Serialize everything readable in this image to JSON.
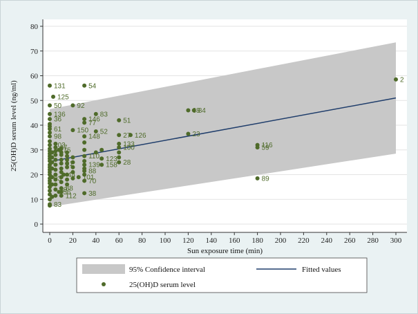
{
  "chart_data": {
    "type": "scatter",
    "xlabel": "Sun exposure time (min)",
    "ylabel": "25(OH)D serum level  (ng/ml)",
    "xlim": [
      0,
      300
    ],
    "ylim": [
      0,
      80
    ],
    "xticks": [
      0,
      20,
      40,
      60,
      80,
      100,
      120,
      140,
      160,
      180,
      200,
      220,
      240,
      260,
      280,
      300
    ],
    "yticks": [
      0,
      10,
      20,
      30,
      40,
      50,
      60,
      70,
      80
    ],
    "grid": "horizontal",
    "legend_placement": "bottom",
    "legend": {
      "ci": "95% Confidence  interval",
      "fit": "Fitted values",
      "points": "25(OH)D serum level"
    },
    "colors": {
      "ci": "#c8c8c8",
      "fit": "#1f3d6b",
      "points": "#4f6b2a",
      "plot_bg": "#ffffff",
      "outer_bg": "#eaf2f3"
    },
    "fitted_line": {
      "x": [
        0,
        300
      ],
      "y": [
        25.3,
        51.0
      ]
    },
    "confidence_band": {
      "x": [
        0,
        300
      ],
      "lower": [
        7.0,
        28.5
      ],
      "upper": [
        46.5,
        73.5
      ]
    },
    "labeled_points": [
      {
        "x": 0,
        "y": 56,
        "label": "131"
      },
      {
        "x": 3,
        "y": 51.5,
        "label": "125"
      },
      {
        "x": 0,
        "y": 48,
        "label": "50"
      },
      {
        "x": 20,
        "y": 48,
        "label": "92"
      },
      {
        "x": 30,
        "y": 56,
        "label": "54"
      },
      {
        "x": 0,
        "y": 44.5,
        "label": "136"
      },
      {
        "x": 0,
        "y": 42.5,
        "label": "36"
      },
      {
        "x": 40,
        "y": 44.5,
        "label": "83"
      },
      {
        "x": 30,
        "y": 42.5,
        "label": "146"
      },
      {
        "x": 30,
        "y": 41,
        "label": "77"
      },
      {
        "x": 60,
        "y": 42,
        "label": "51"
      },
      {
        "x": 120,
        "y": 46,
        "label": "68"
      },
      {
        "x": 125,
        "y": 46,
        "label": "84"
      },
      {
        "x": 0,
        "y": 38.5,
        "label": "61"
      },
      {
        "x": 20,
        "y": 38,
        "label": "150"
      },
      {
        "x": 40,
        "y": 37.5,
        "label": "52"
      },
      {
        "x": 0,
        "y": 35.5,
        "label": "98"
      },
      {
        "x": 30,
        "y": 35.5,
        "label": "148"
      },
      {
        "x": 60,
        "y": 36,
        "label": "27"
      },
      {
        "x": 70,
        "y": 36,
        "label": "126"
      },
      {
        "x": 120,
        "y": 36.5,
        "label": "23"
      },
      {
        "x": 300,
        "y": 58.5,
        "label": "2"
      },
      {
        "x": 0,
        "y": 32,
        "label": "103"
      },
      {
        "x": 5,
        "y": 31,
        "label": "47"
      },
      {
        "x": 8,
        "y": 30,
        "label": "75"
      },
      {
        "x": 60,
        "y": 32.5,
        "label": "133"
      },
      {
        "x": 60,
        "y": 31,
        "label": "100"
      },
      {
        "x": 180,
        "y": 32,
        "label": "116"
      },
      {
        "x": 180,
        "y": 31,
        "label": "59"
      },
      {
        "x": 30,
        "y": 27.5,
        "label": "110"
      },
      {
        "x": 45,
        "y": 26.5,
        "label": "123"
      },
      {
        "x": 60,
        "y": 25,
        "label": "28"
      },
      {
        "x": 10,
        "y": 24.5,
        "label": "91"
      },
      {
        "x": 30,
        "y": 24,
        "label": "139"
      },
      {
        "x": 45,
        "y": 24,
        "label": "158"
      },
      {
        "x": 30,
        "y": 21.5,
        "label": "88"
      },
      {
        "x": 12,
        "y": 20,
        "label": "44"
      },
      {
        "x": 25,
        "y": 19,
        "label": "101"
      },
      {
        "x": 30,
        "y": 17.5,
        "label": "70"
      },
      {
        "x": 0,
        "y": 18.5,
        "label": "93"
      },
      {
        "x": 180,
        "y": 18.5,
        "label": "89"
      },
      {
        "x": 10,
        "y": 14.5,
        "label": "88"
      },
      {
        "x": 5,
        "y": 14,
        "label": "39"
      },
      {
        "x": 8,
        "y": 13,
        "label": "56"
      },
      {
        "x": 10,
        "y": 11.5,
        "label": "112"
      },
      {
        "x": 30,
        "y": 12.5,
        "label": "38"
      },
      {
        "x": 0,
        "y": 8,
        "label": "83"
      }
    ],
    "unlabeled_points": [
      {
        "x": 0,
        "y": 10
      },
      {
        "x": 0,
        "y": 12
      },
      {
        "x": 0,
        "y": 13.5
      },
      {
        "x": 0,
        "y": 15
      },
      {
        "x": 0,
        "y": 16.5
      },
      {
        "x": 0,
        "y": 17.5
      },
      {
        "x": 0,
        "y": 20
      },
      {
        "x": 0,
        "y": 21
      },
      {
        "x": 0,
        "y": 22
      },
      {
        "x": 0,
        "y": 23
      },
      {
        "x": 0,
        "y": 24
      },
      {
        "x": 0,
        "y": 25.5
      },
      {
        "x": 0,
        "y": 26.5
      },
      {
        "x": 0,
        "y": 27.5
      },
      {
        "x": 0,
        "y": 28.5
      },
      {
        "x": 0,
        "y": 29.5
      },
      {
        "x": 0,
        "y": 30.5
      },
      {
        "x": 0,
        "y": 33.5
      },
      {
        "x": 0,
        "y": 37
      },
      {
        "x": 0,
        "y": 39.5
      },
      {
        "x": 0,
        "y": 40.5
      },
      {
        "x": 0,
        "y": 7.5
      },
      {
        "x": 2,
        "y": 11
      },
      {
        "x": 2,
        "y": 16
      },
      {
        "x": 2,
        "y": 19
      },
      {
        "x": 2,
        "y": 22.5
      },
      {
        "x": 2,
        "y": 25
      },
      {
        "x": 2,
        "y": 27
      },
      {
        "x": 2,
        "y": 29
      },
      {
        "x": 5,
        "y": 11.5
      },
      {
        "x": 5,
        "y": 16
      },
      {
        "x": 5,
        "y": 18
      },
      {
        "x": 5,
        "y": 20
      },
      {
        "x": 5,
        "y": 22
      },
      {
        "x": 5,
        "y": 24
      },
      {
        "x": 5,
        "y": 26
      },
      {
        "x": 5,
        "y": 28
      },
      {
        "x": 5,
        "y": 29.5
      },
      {
        "x": 5,
        "y": 32.5
      },
      {
        "x": 10,
        "y": 13
      },
      {
        "x": 10,
        "y": 17
      },
      {
        "x": 10,
        "y": 19
      },
      {
        "x": 10,
        "y": 21
      },
      {
        "x": 10,
        "y": 22.5
      },
      {
        "x": 10,
        "y": 26
      },
      {
        "x": 10,
        "y": 28
      },
      {
        "x": 10,
        "y": 29
      },
      {
        "x": 10,
        "y": 30.5
      },
      {
        "x": 15,
        "y": 16
      },
      {
        "x": 15,
        "y": 18
      },
      {
        "x": 15,
        "y": 20
      },
      {
        "x": 15,
        "y": 23
      },
      {
        "x": 15,
        "y": 24.5
      },
      {
        "x": 15,
        "y": 26
      },
      {
        "x": 15,
        "y": 27.5
      },
      {
        "x": 15,
        "y": 29
      },
      {
        "x": 20,
        "y": 18.5
      },
      {
        "x": 20,
        "y": 21
      },
      {
        "x": 20,
        "y": 23
      },
      {
        "x": 20,
        "y": 25
      },
      {
        "x": 20,
        "y": 27
      },
      {
        "x": 30,
        "y": 20
      },
      {
        "x": 30,
        "y": 22.5
      },
      {
        "x": 30,
        "y": 25.5
      },
      {
        "x": 30,
        "y": 30
      },
      {
        "x": 30,
        "y": 33
      },
      {
        "x": 40,
        "y": 29
      },
      {
        "x": 45,
        "y": 30
      },
      {
        "x": 60,
        "y": 27
      },
      {
        "x": 60,
        "y": 29
      }
    ]
  }
}
